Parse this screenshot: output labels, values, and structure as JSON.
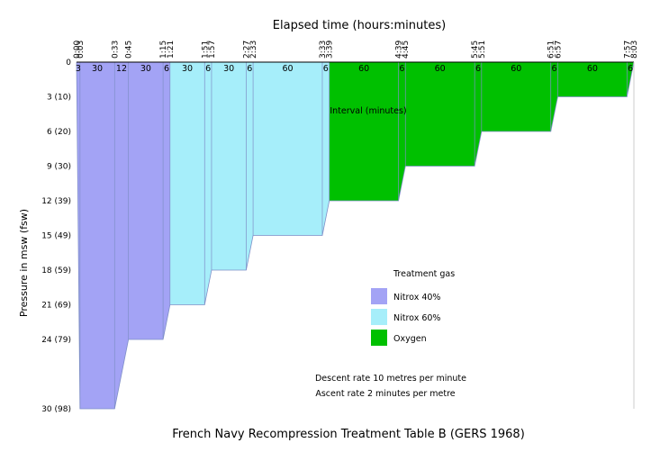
{
  "chart_data": {
    "type": "area",
    "title": "French Navy Recompression Treatment Table B (GERS 1968)",
    "xlabel": "Elapsed time (hours:minutes)",
    "ylabel": "Pressure in msw (fsw)",
    "interval_label": "Interval (minutes)",
    "xlim_minutes": [
      0,
      483
    ],
    "ylim_msw": [
      0,
      30
    ],
    "x_ticks": [
      "0:00",
      "0:03",
      "0:33",
      "0:45",
      "1:15",
      "1:21",
      "1:51",
      "1:57",
      "2:27",
      "2:33",
      "3:33",
      "3:39",
      "4:39",
      "4:45",
      "5:45",
      "5:51",
      "6:51",
      "6:57",
      "7:57",
      "8:03"
    ],
    "x_tick_minutes": [
      0,
      3,
      33,
      45,
      75,
      81,
      111,
      117,
      147,
      153,
      213,
      219,
      279,
      285,
      345,
      351,
      411,
      417,
      477,
      483
    ],
    "y_ticks": [
      "0",
      "3 (10)",
      "6 (20)",
      "9 (30)",
      "12 (39)",
      "15 (49)",
      "18 (59)",
      "21 (69)",
      "24 (79)",
      "30 (98)"
    ],
    "y_tick_msw": [
      0,
      3,
      6,
      9,
      12,
      15,
      18,
      21,
      24,
      30
    ],
    "interval_labels": [
      "3",
      "30",
      "12",
      "30",
      "6",
      "30",
      "6",
      "30",
      "6",
      "60",
      "6",
      "60",
      "6",
      "60",
      "6",
      "60",
      "6",
      "60",
      "6"
    ],
    "interval_centers_minutes": [
      1.5,
      18,
      39,
      60,
      78,
      96,
      114,
      132,
      150,
      183,
      216,
      249,
      282,
      315,
      348,
      381,
      414,
      447,
      480
    ],
    "profile": [
      {
        "gas": "Nitrox 40%",
        "points": [
          [
            0,
            0
          ],
          [
            3,
            30
          ],
          [
            33,
            30
          ],
          [
            45,
            24
          ],
          [
            75,
            24
          ],
          [
            81,
            21
          ]
        ]
      },
      {
        "gas": "Nitrox 60%",
        "points": [
          [
            81,
            21
          ],
          [
            111,
            21
          ],
          [
            117,
            18
          ],
          [
            147,
            18
          ],
          [
            153,
            15
          ],
          [
            213,
            15
          ],
          [
            219,
            12
          ]
        ]
      },
      {
        "gas": "Oxygen",
        "points": [
          [
            219,
            12
          ],
          [
            279,
            12
          ],
          [
            285,
            9
          ],
          [
            345,
            9
          ],
          [
            351,
            6
          ],
          [
            411,
            6
          ],
          [
            417,
            3
          ],
          [
            477,
            3
          ],
          [
            483,
            0
          ]
        ]
      }
    ],
    "legend": {
      "title": "Treatment gas",
      "placement": "center-right",
      "items": [
        {
          "label": "Nitrox 40%",
          "color": "#a3a3f5"
        },
        {
          "label": "Nitrox 60%",
          "color": "#a6eefa"
        },
        {
          "label": "Oxygen",
          "color": "#00c000"
        }
      ]
    },
    "notes": [
      "Descent rate 10 metres per minute",
      "Ascent rate 2 minutes per metre"
    ],
    "colors": {
      "nitrox40": "#a3a3f5",
      "nitrox60": "#a6eefa",
      "oxygen": "#00c000",
      "segment_line": "#7f8fc8"
    }
  }
}
